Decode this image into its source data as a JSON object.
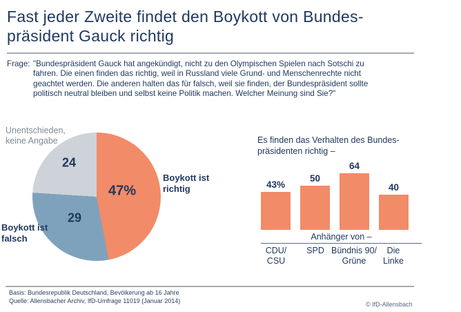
{
  "header": {
    "title": [
      "Fast jeder Zweite findet den Boykott von Bundes-",
      "präsident Gauck richtig"
    ]
  },
  "question": {
    "prefix": "Frage:",
    "lines": [
      "\"Bundespräsident Gauck hat angekündigt, nicht zu den Olympischen Spielen nach Sotschi zu",
      "fahren. Die einen finden das richtig, weil in Russland viele Grund- und Menschenrechte nicht",
      "geachtet werden. Die anderen halten das für falsch, weil sie finden, der Bundespräsident sollte",
      "politisch neutral bleiben und selbst keine Politik machen. Welcher Meinung sind Sie?\""
    ]
  },
  "chart_data": [
    {
      "type": "pie",
      "labels": [
        "Boykott ist richtig",
        "Boykott ist falsch",
        "Unentschieden, keine Angabe"
      ],
      "values": [
        47,
        29,
        24
      ],
      "value_labels": [
        "47%",
        "29",
        "24"
      ],
      "colors": [
        "#f28b68",
        "#7fa2bc",
        "#ced3d9"
      ],
      "start_angle_deg": 0,
      "direction": "clockwise",
      "unit": "percent"
    },
    {
      "type": "bar",
      "title": [
        "Es finden das Verhalten des Bundes-",
        "präsidenten richtig –"
      ],
      "group_label": "Anhänger von –",
      "categories": [
        [
          "CDU/",
          "CSU"
        ],
        [
          "SPD"
        ],
        [
          "Bündnis 90/",
          "Grüne"
        ],
        [
          "Die",
          "Linke"
        ]
      ],
      "values": [
        43,
        50,
        64,
        40
      ],
      "value_labels": [
        "43%",
        "50",
        "64",
        "40"
      ],
      "bar_color": "#f28b68",
      "ylim": [
        0,
        70
      ],
      "grid": false,
      "unit": "percent"
    }
  ],
  "colors": {
    "text_navy": "#20395e",
    "muted_label": "#7e8a96",
    "rule_gray": "#a6abb2",
    "pie_orange": "#f28b68",
    "pie_blue": "#7fa2bc",
    "pie_gray": "#ced3d9"
  },
  "footer": {
    "basis": "Basis: Bundesrepublik Deutschland, Bevölkerung ab 16 Jahre",
    "quelle": "Quelle: Allensbacher Archiv, IfD-Umfrage 11019 (Januar 2014)",
    "copyright": "© IfD-Allensbach"
  }
}
